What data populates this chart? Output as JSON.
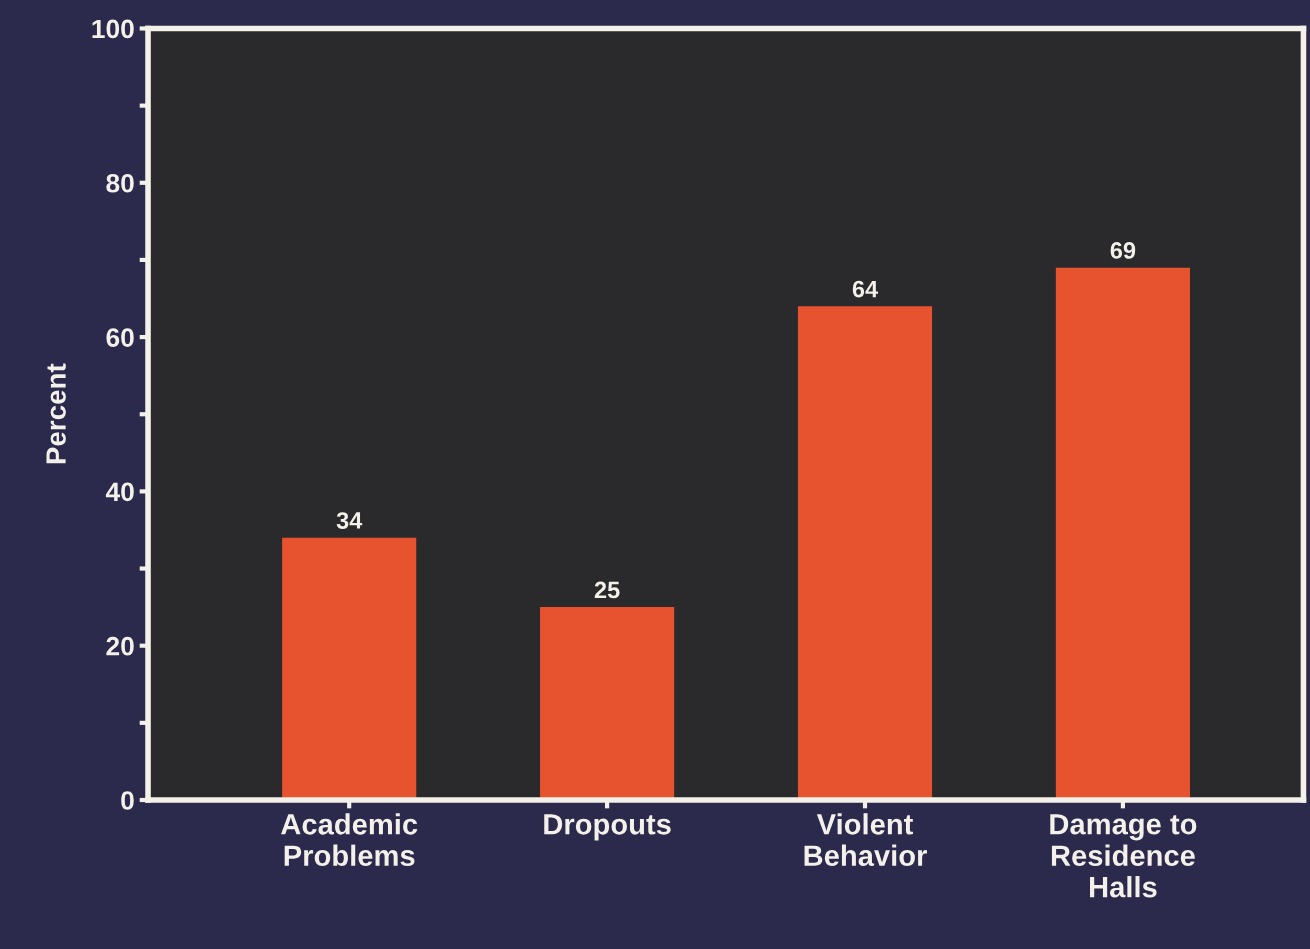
{
  "chart_data": {
    "type": "bar",
    "ylabel": "Percent",
    "categories": [
      "Academic\nProblems",
      "Dropouts",
      "Violent\nBehavior",
      "Damage to\nResidence\nHalls"
    ],
    "values": [
      34,
      25,
      64,
      69
    ],
    "color": "#e8532f",
    "ylim": [
      0,
      100
    ],
    "yticks": [
      0,
      {
        "value": 10,
        "label": null
      },
      20,
      {
        "value": 30,
        "label": null
      },
      40,
      {
        "value": 50,
        "label": null
      },
      60,
      {
        "value": 70,
        "label": null
      },
      80,
      {
        "value": 90,
        "label": null
      },
      100
    ],
    "data_labels": true,
    "grid": false,
    "legend": false
  }
}
